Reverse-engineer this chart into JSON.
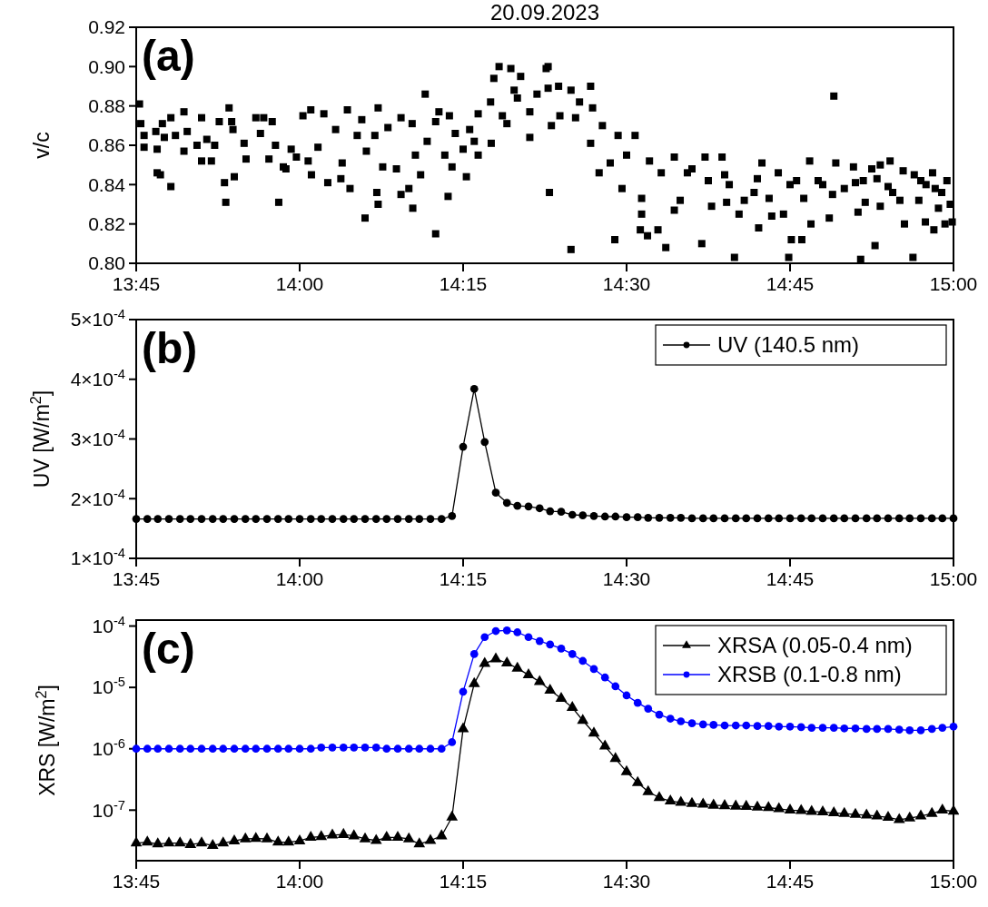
{
  "chart_data": [
    {
      "type": "scatter",
      "title": "20.09.2023",
      "ylabel": "v/c",
      "annotations": [
        "(a)"
      ],
      "marker": "square",
      "xlim": [
        13.75,
        15
      ],
      "xticks": [
        {
          "value": 13.75,
          "label": "13:45"
        },
        {
          "value": 14,
          "label": "14:00"
        },
        {
          "value": 14.25,
          "label": "14:15"
        },
        {
          "value": 14.5,
          "label": "14:30"
        },
        {
          "value": 14.75,
          "label": "14:45"
        },
        {
          "value": 15,
          "label": "15:00"
        }
      ],
      "ylim": [
        0.8,
        0.92
      ],
      "yticks": [
        {
          "value": 0.8,
          "label": "0.80"
        },
        {
          "value": 0.82,
          "label": "0.82"
        },
        {
          "value": 0.84,
          "label": "0.84"
        },
        {
          "value": 0.86,
          "label": "0.86"
        },
        {
          "value": 0.88,
          "label": "0.88"
        },
        {
          "value": 0.9,
          "label": "0.90"
        },
        {
          "value": 0.92,
          "label": "0.92"
        }
      ],
      "series": [
        {
          "color": "#000000",
          "x": [
            13.755,
            13.757,
            13.762,
            13.762,
            13.78,
            13.782,
            13.782,
            13.787,
            13.79,
            13.793,
            13.803,
            13.803,
            13.81,
            13.823,
            13.823,
            13.828,
            13.843,
            13.85,
            13.85,
            13.858,
            13.865,
            13.87,
            13.877,
            13.885,
            13.887,
            13.892,
            13.896,
            13.898,
            13.9,
            13.915,
            13.918,
            13.933,
            13.94,
            13.945,
            13.953,
            13.958,
            13.963,
            13.968,
            13.975,
            13.979,
            13.987,
            13.995,
            14.005,
            14.013,
            14.017,
            14.018,
            14.028,
            14.037,
            14.043,
            14.055,
            14.063,
            14.065,
            14.073,
            14.077,
            14.088,
            14.095,
            14.1,
            14.102,
            14.115,
            14.118,
            14.12,
            14.12,
            14.127,
            14.135,
            14.148,
            14.155,
            14.155,
            14.167,
            14.172,
            14.173,
            14.177,
            14.185,
            14.192,
            14.195,
            14.208,
            14.208,
            14.213,
            14.222,
            14.227,
            14.229,
            14.233,
            14.238,
            14.25,
            14.255,
            14.26,
            14.267,
            14.273,
            14.273,
            14.292,
            14.293,
            14.297,
            14.305,
            14.31,
            14.317,
            14.323,
            14.328,
            14.333,
            14.338,
            14.352,
            14.352,
            14.363,
            14.377,
            14.382,
            14.385,
            14.38,
            14.38,
            14.396,
            14.398,
            14.415,
            14.415,
            14.422,
            14.428,
            14.445,
            14.445,
            14.448,
            14.458,
            14.463,
            14.475,
            14.482,
            14.487,
            14.493,
            14.5,
            14.513,
            14.523,
            14.523,
            14.521,
            14.532,
            14.535,
            14.548,
            14.553,
            14.56,
            14.573,
            14.573,
            14.582,
            14.593,
            14.615,
            14.62,
            14.625,
            14.63,
            14.646,
            14.653,
            14.657,
            14.665,
            14.672,
            14.68,
            14.695,
            14.702,
            14.707,
            14.718,
            14.722,
            14.732,
            14.74,
            14.748,
            14.752,
            14.76,
            14.768,
            14.771,
            14.78,
            14.782,
            14.793,
            14.81,
            14.815,
            14.817,
            14.82,
            14.833,
            14.847,
            14.854,
            14.858,
            14.862,
            14.865,
            14.875,
            14.88,
            14.888,
            14.888,
            14.903,
            14.907,
            14.918,
            14.923,
            14.925,
            14.938,
            14.94,
            14.947,
            14.957,
            14.958,
            14.968,
            14.97,
            14.977,
            14.982,
            14.987,
            14.99,
            14.995,
            14.998,
            14.6,
            14.7,
            14.8,
            14.85,
            14.9,
            14.95,
            14.972,
            14.65,
            14.75,
            14.883
          ],
          "values": [
            0.881,
            0.871,
            0.865,
            0.859,
            0.867,
            0.858,
            0.846,
            0.845,
            0.871,
            0.864,
            0.874,
            0.839,
            0.865,
            0.877,
            0.857,
            0.867,
            0.86,
            0.874,
            0.852,
            0.863,
            0.852,
            0.86,
            0.872,
            0.841,
            0.831,
            0.879,
            0.872,
            0.868,
            0.844,
            0.861,
            0.853,
            0.874,
            0.866,
            0.874,
            0.853,
            0.872,
            0.86,
            0.831,
            0.849,
            0.848,
            0.858,
            0.854,
            0.875,
            0.852,
            0.878,
            0.845,
            0.859,
            0.876,
            0.841,
            0.868,
            0.843,
            0.851,
            0.878,
            0.838,
            0.865,
            0.873,
            0.823,
            0.857,
            0.865,
            0.836,
            0.83,
            0.879,
            0.849,
            0.869,
            0.848,
            0.874,
            0.835,
            0.838,
            0.871,
            0.828,
            0.855,
            0.845,
            0.886,
            0.862,
            0.815,
            0.872,
            0.877,
            0.855,
            0.834,
            0.875,
            0.849,
            0.866,
            0.858,
            0.844,
            0.868,
            0.862,
            0.876,
            0.855,
            0.882,
            0.861,
            0.894,
            0.9,
            0.875,
            0.871,
            0.899,
            0.888,
            0.884,
            0.895,
            0.877,
            0.864,
            0.886,
            0.899,
            0.836,
            0.87,
            0.9,
            0.889,
            0.89,
            0.875,
            0.888,
            0.807,
            0.874,
            0.882,
            0.89,
            0.861,
            0.879,
            0.846,
            0.87,
            0.851,
            0.812,
            0.865,
            0.838,
            0.855,
            0.865,
            0.833,
            0.825,
            0.817,
            0.814,
            0.852,
            0.817,
            0.846,
            0.808,
            0.854,
            0.827,
            0.832,
            0.846,
            0.81,
            0.854,
            0.842,
            0.829,
            0.854,
            0.831,
            0.84,
            0.803,
            0.825,
            0.832,
            0.836,
            0.818,
            0.851,
            0.833,
            0.824,
            0.846,
            0.825,
            0.803,
            0.812,
            0.842,
            0.812,
            0.833,
            0.852,
            0.82,
            0.842,
            0.823,
            0.835,
            0.885,
            0.851,
            0.838,
            0.849,
            0.826,
            0.802,
            0.842,
            0.831,
            0.848,
            0.809,
            0.829,
            0.85,
            0.852,
            0.836,
            0.832,
            0.847,
            0.82,
            0.803,
            0.845,
            0.832,
            0.821,
            0.84,
            0.846,
            0.817,
            0.828,
            0.836,
            0.82,
            0.842,
            0.83,
            0.821,
            0.848,
            0.843,
            0.84,
            0.841,
            0.839,
            0.842,
            0.838,
            0.845,
            0.84,
            0.843
          ]
        }
      ]
    },
    {
      "type": "line",
      "ylabel": "UV [W/m$^{2}$]",
      "annotations": [
        "(b)"
      ],
      "marker": "circle",
      "legend": "top right",
      "xlim": [
        13.75,
        15
      ],
      "xticks": [
        {
          "value": 13.75,
          "label": "13:45"
        },
        {
          "value": 14,
          "label": "14:00"
        },
        {
          "value": 14.25,
          "label": "14:15"
        },
        {
          "value": 14.5,
          "label": "14:30"
        },
        {
          "value": 14.75,
          "label": "14:45"
        },
        {
          "value": 15,
          "label": "15:00"
        }
      ],
      "ylim": [
        0.0001,
        0.0005
      ],
      "yticks": [
        {
          "value": 0.0001,
          "label": "1×10$^{-4}$"
        },
        {
          "value": 0.0002,
          "label": "2×10$^{-4}$"
        },
        {
          "value": 0.0003,
          "label": "3×10$^{-4}$"
        },
        {
          "value": 0.0004,
          "label": "4×10$^{-4}$"
        },
        {
          "value": 0.0005,
          "label": "5×10$^{-4}$"
        }
      ],
      "x": [
        13.75,
        13.767,
        13.783,
        13.8,
        13.817,
        13.833,
        13.85,
        13.867,
        13.883,
        13.9,
        13.917,
        13.933,
        13.95,
        13.967,
        13.983,
        14,
        14.017,
        14.033,
        14.05,
        14.067,
        14.083,
        14.1,
        14.117,
        14.133,
        14.15,
        14.167,
        14.183,
        14.2,
        14.217,
        14.233,
        14.25,
        14.267,
        14.283,
        14.3,
        14.317,
        14.333,
        14.35,
        14.367,
        14.383,
        14.4,
        14.417,
        14.433,
        14.45,
        14.467,
        14.483,
        14.5,
        14.517,
        14.533,
        14.55,
        14.567,
        14.583,
        14.6,
        14.617,
        14.633,
        14.65,
        14.667,
        14.683,
        14.7,
        14.717,
        14.733,
        14.75,
        14.767,
        14.783,
        14.8,
        14.817,
        14.833,
        14.85,
        14.867,
        14.883,
        14.9,
        14.917,
        14.933,
        14.95,
        14.967,
        14.983,
        15
      ],
      "series": [
        {
          "name": "UV (140.5 nm)",
          "color": "#000000",
          "values": [
            0.000166,
            0.000166,
            0.000166,
            0.000166,
            0.000166,
            0.000166,
            0.000166,
            0.000166,
            0.000166,
            0.000166,
            0.000166,
            0.000166,
            0.000166,
            0.000166,
            0.000166,
            0.000166,
            0.000166,
            0.000166,
            0.000166,
            0.000166,
            0.000166,
            0.000166,
            0.000166,
            0.000166,
            0.000166,
            0.000166,
            0.000166,
            0.000166,
            0.000166,
            0.000171,
            0.000287,
            0.000384,
            0.000295,
            0.00021,
            0.000193,
            0.000188,
            0.000187,
            0.000184,
            0.000179,
            0.000178,
            0.000173,
            0.000172,
            0.000171,
            0.00017,
            0.00017,
            0.000169,
            0.000169,
            0.000168,
            0.000168,
            0.000168,
            0.000168,
            0.000167,
            0.000167,
            0.000167,
            0.000167,
            0.000167,
            0.000167,
            0.000167,
            0.000167,
            0.000167,
            0.000167,
            0.000167,
            0.000167,
            0.000167,
            0.000167,
            0.000167,
            0.000167,
            0.000167,
            0.000167,
            0.000167,
            0.000167,
            0.000167,
            0.000167,
            0.000167,
            0.000167,
            0.000167
          ]
        }
      ]
    },
    {
      "type": "line",
      "ylabel": "XRS [W/m$^{2}$]",
      "annotations": [
        "(c)"
      ],
      "log": true,
      "legend": "top right",
      "xlim": [
        13.75,
        15
      ],
      "xticks": [
        {
          "value": 13.75,
          "label": "13:45"
        },
        {
          "value": 14,
          "label": "14:00"
        },
        {
          "value": 14.25,
          "label": "14:15"
        },
        {
          "value": 14.5,
          "label": "14:30"
        },
        {
          "value": 14.75,
          "label": "14:45"
        },
        {
          "value": 15,
          "label": "15:00"
        }
      ],
      "ylim": [
        1.5e-08,
        0.000125
      ],
      "yticks": [
        {
          "value": 1e-07,
          "label": "10$^{-7}$"
        },
        {
          "value": 1e-06,
          "label": "10$^{-6}$"
        },
        {
          "value": 1e-05,
          "label": "10$^{-5}$"
        },
        {
          "value": 0.0001,
          "label": "10$^{-4}$"
        }
      ],
      "x": [
        13.75,
        13.767,
        13.783,
        13.8,
        13.817,
        13.833,
        13.85,
        13.867,
        13.883,
        13.9,
        13.917,
        13.933,
        13.95,
        13.967,
        13.983,
        14,
        14.017,
        14.033,
        14.05,
        14.067,
        14.083,
        14.1,
        14.117,
        14.133,
        14.15,
        14.167,
        14.183,
        14.2,
        14.217,
        14.233,
        14.25,
        14.267,
        14.283,
        14.3,
        14.317,
        14.333,
        14.35,
        14.367,
        14.383,
        14.4,
        14.417,
        14.433,
        14.45,
        14.467,
        14.483,
        14.5,
        14.517,
        14.533,
        14.55,
        14.567,
        14.583,
        14.6,
        14.617,
        14.633,
        14.65,
        14.667,
        14.683,
        14.7,
        14.717,
        14.733,
        14.75,
        14.767,
        14.783,
        14.8,
        14.817,
        14.833,
        14.85,
        14.867,
        14.883,
        14.9,
        14.917,
        14.933,
        14.95,
        14.967,
        14.983,
        15
      ],
      "series": [
        {
          "name": "XRSA (0.05-0.4 nm)",
          "color": "#000000",
          "marker": "triangle",
          "values": [
            2.9e-08,
            3e-08,
            2.8e-08,
            2.9e-08,
            2.9e-08,
            2.75e-08,
            2.9e-08,
            2.65e-08,
            2.9e-08,
            3.15e-08,
            3.4e-08,
            3.45e-08,
            3.4e-08,
            3e-08,
            3e-08,
            3.15e-08,
            3.6e-08,
            3.7e-08,
            3.9e-08,
            4e-08,
            3.8e-08,
            3.4e-08,
            3.2e-08,
            3.6e-08,
            3.6e-08,
            3.4e-08,
            2.8e-08,
            3.2e-08,
            3.8e-08,
            7.7e-08,
            2.1e-06,
            1.15e-05,
            2.45e-05,
            2.9e-05,
            2.5e-05,
            2.05e-05,
            1.6e-05,
            1.24e-05,
            9e-06,
            6.6e-06,
            4.7e-06,
            2.9e-06,
            1.8e-06,
            1.1e-06,
            6.9e-07,
            4.2e-07,
            2.8e-07,
            2e-07,
            1.6e-07,
            1.4e-07,
            1.33e-07,
            1.28e-07,
            1.25e-07,
            1.2e-07,
            1.18e-07,
            1.16e-07,
            1.15e-07,
            1.12e-07,
            1.1e-07,
            1.05e-07,
            1e-07,
            9.8e-08,
            9.5e-08,
            9.3e-08,
            9e-08,
            8.8e-08,
            8.5e-08,
            8.3e-08,
            8e-08,
            7.6e-08,
            7e-08,
            7.4e-08,
            8e-08,
            8.8e-08,
            1e-07,
            9.6e-08
          ]
        },
        {
          "name": "XRSB (0.1-0.8 nm)",
          "color": "#0000ff",
          "marker": "circle",
          "values": [
            1e-06,
            1e-06,
            1e-06,
            1e-06,
            1e-06,
            1e-06,
            1e-06,
            1e-06,
            1e-06,
            1e-06,
            1e-06,
            1e-06,
            1e-06,
            1e-06,
            1e-06,
            1e-06,
            1e-06,
            1.05e-06,
            1.05e-06,
            1.05e-06,
            1.05e-06,
            1.05e-06,
            1.05e-06,
            1e-06,
            1e-06,
            1e-06,
            1e-06,
            1e-06,
            1e-06,
            1.28e-06,
            8.5e-06,
            3.5e-05,
            6.6e-05,
            8.3e-05,
            8.5e-05,
            7.9e-05,
            6.6e-05,
            5.7e-05,
            5e-05,
            4.3e-05,
            3.5e-05,
            2.7e-05,
            2e-05,
            1.45e-05,
            1.04e-05,
            7.4e-06,
            5.6e-06,
            4.5e-06,
            3.6e-06,
            3.1e-06,
            2.8e-06,
            2.6e-06,
            2.5e-06,
            2.45e-06,
            2.4e-06,
            2.4e-06,
            2.4e-06,
            2.35e-06,
            2.35e-06,
            2.3e-06,
            2.3e-06,
            2.25e-06,
            2.2e-06,
            2.2e-06,
            2.2e-06,
            2.15e-06,
            2.15e-06,
            2.1e-06,
            2.1e-06,
            2.1e-06,
            2.05e-06,
            2e-06,
            2e-06,
            2.1e-06,
            2.2e-06,
            2.3e-06
          ]
        }
      ]
    }
  ]
}
